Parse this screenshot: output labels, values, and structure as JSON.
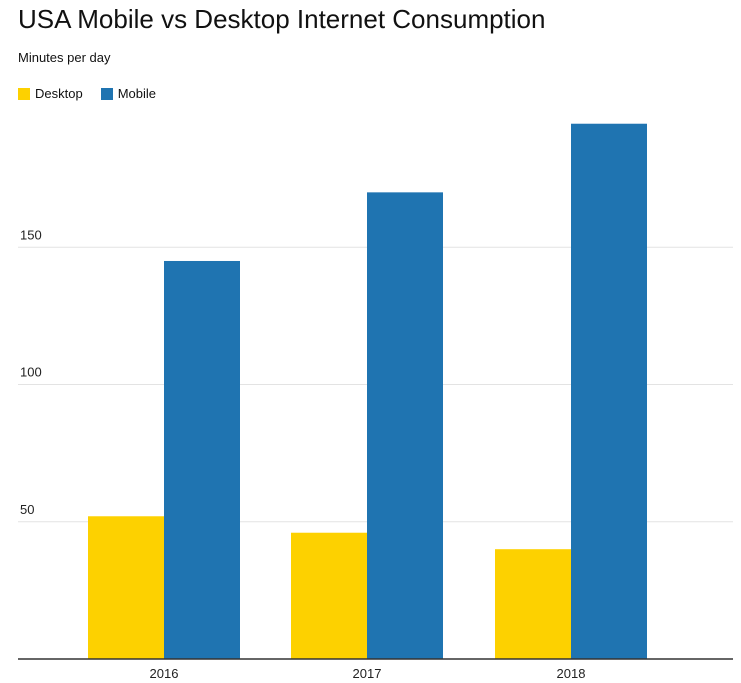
{
  "chart_data": {
    "type": "bar",
    "title": "USA Mobile vs Desktop Internet Consumption",
    "subtitle": "Minutes per day",
    "categories": [
      "2016",
      "2017",
      "2018"
    ],
    "series": [
      {
        "name": "Desktop",
        "color": "#FDD100",
        "values": [
          52,
          46,
          40
        ]
      },
      {
        "name": "Mobile",
        "color": "#1F74B1",
        "values": [
          145,
          170,
          195
        ]
      }
    ],
    "ylim": [
      0,
      200
    ],
    "yticks": [
      50,
      100,
      150
    ],
    "grid": true,
    "legend_position": "top-left"
  }
}
